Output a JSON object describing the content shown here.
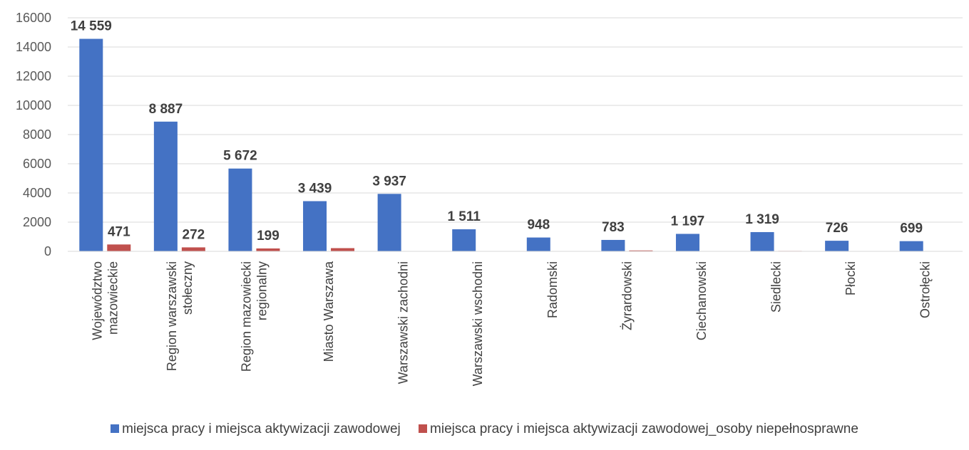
{
  "chart_data": {
    "type": "bar",
    "categories": [
      "Województwo mazowieckie",
      "Region warszawski stołeczny",
      "Region mazowiecki regionalny",
      "Miasto Warszawa",
      "Warszawski zachodni",
      "Warszawski wschodni",
      "Radomski",
      "Żyrardowski",
      "Ciechanowski",
      "Siedlecki",
      "Płocki",
      "Ostrołęcki"
    ],
    "category_lines": [
      [
        "Województwo",
        "mazowieckie"
      ],
      [
        "Region warszawski",
        "stołeczny"
      ],
      [
        "Region mazowiecki",
        "regionalny"
      ],
      [
        "Miasto Warszawa"
      ],
      [
        "Warszawski zachodni"
      ],
      [
        "Warszawski wschodni"
      ],
      [
        "Radomski"
      ],
      [
        "Żyrardowski"
      ],
      [
        "Ciechanowski"
      ],
      [
        "Siedlecki"
      ],
      [
        "Płocki"
      ],
      [
        "Ostrołęcki"
      ]
    ],
    "series": [
      {
        "name": "miejsca pracy i miejsca aktywizacji zawodowej",
        "color": "#4472C4",
        "values": [
          14559,
          8887,
          5672,
          3439,
          3937,
          1511,
          948,
          783,
          1197,
          1319,
          726,
          699
        ],
        "labels": [
          "14 559",
          "8 887",
          "5 672",
          "3 439",
          "3 937",
          "1 511",
          "948",
          "783",
          "1 197",
          "1 319",
          "726",
          "699"
        ]
      },
      {
        "name": "miejsca pracy i miejsca aktywizacji zawodowej_osoby niepełnosprawne",
        "color": "#C0504D",
        "values": [
          471,
          272,
          199,
          220,
          5,
          5,
          5,
          60,
          5,
          30,
          20,
          5
        ],
        "labels": [
          "471",
          "272",
          "199",
          "",
          "",
          "",
          "",
          "",
          "",
          "",
          "",
          ""
        ]
      }
    ],
    "y_ticks": [
      "0",
      "2000",
      "4000",
      "6000",
      "8000",
      "10000",
      "12000",
      "14000",
      "16000"
    ],
    "ylim": [
      0,
      16000
    ],
    "grid": true,
    "legend_position": "bottom"
  }
}
